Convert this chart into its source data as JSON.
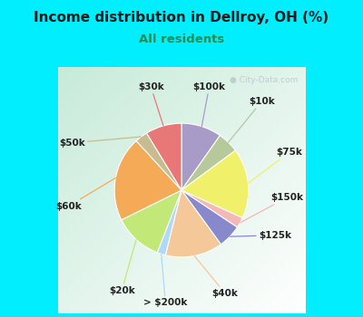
{
  "title": "Income distribution in Dellroy, OH (%)",
  "subtitle": "All residents",
  "title_color": "#1a1a1a",
  "subtitle_color": "#2a8a4a",
  "background_top": "#00eeff",
  "chart_bg_color": "#d8f0e4",
  "watermark": "• City-Data.com",
  "slices": [
    {
      "label": "$100k",
      "value": 9.5,
      "color": "#a89bc8"
    },
    {
      "label": "$10k",
      "value": 5.0,
      "color": "#b5c99a"
    },
    {
      "label": "$75k",
      "value": 16.5,
      "color": "#f0f06a"
    },
    {
      "label": "$150k",
      "value": 2.5,
      "color": "#f4b8b8"
    },
    {
      "label": "$125k",
      "value": 5.5,
      "color": "#8888cc"
    },
    {
      "label": "$40k",
      "value": 13.5,
      "color": "#f5c89a"
    },
    {
      "label": "> $200k",
      "value": 2.0,
      "color": "#b0d8f8"
    },
    {
      "label": "$20k",
      "value": 11.5,
      "color": "#c2e878"
    },
    {
      "label": "$60k",
      "value": 20.0,
      "color": "#f5aa58"
    },
    {
      "label": "$50k",
      "value": 3.0,
      "color": "#c8bb90"
    },
    {
      "label": "$30k",
      "value": 8.5,
      "color": "#e87878"
    }
  ],
  "figsize": [
    4.0,
    3.5
  ],
  "dpi": 100
}
